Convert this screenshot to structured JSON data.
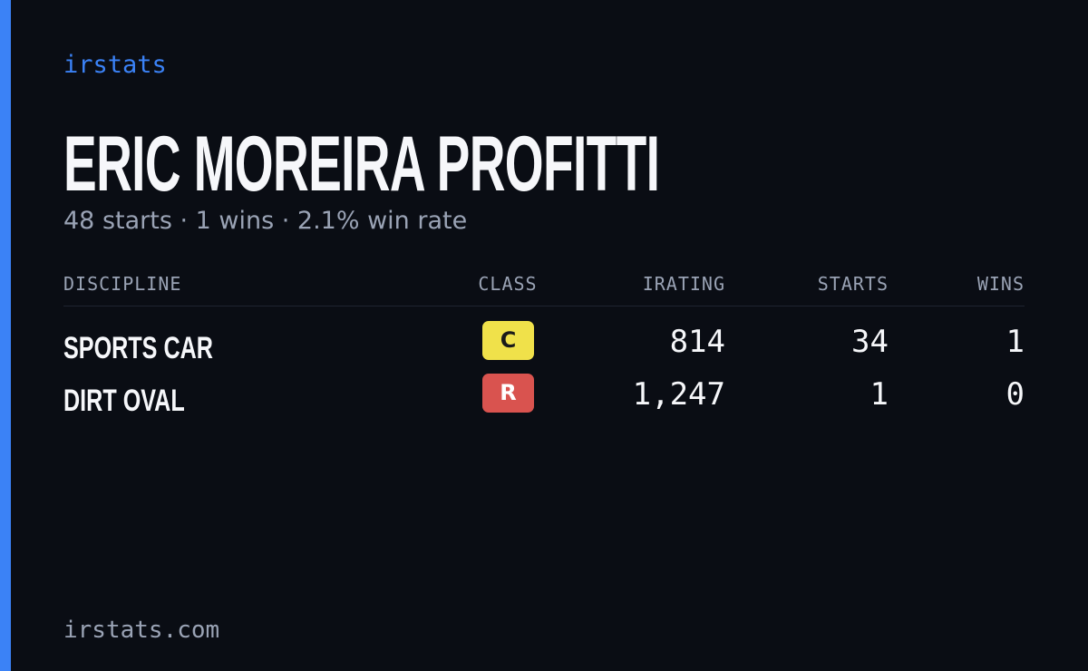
{
  "brand": "irstats",
  "name": "ERIC MOREIRA PROFITTI",
  "summary": "48 starts · 1 wins · 2.1% win rate",
  "table": {
    "headers": [
      "DISCIPLINE",
      "CLASS",
      "IRATING",
      "STARTS",
      "WINS"
    ],
    "rows": [
      [
        "SPORTS CAR",
        "C",
        "814",
        "34",
        "1"
      ],
      [
        "DIRT OVAL",
        "R",
        "1,247",
        "1",
        "0"
      ]
    ]
  },
  "footer": "irstats.com"
}
